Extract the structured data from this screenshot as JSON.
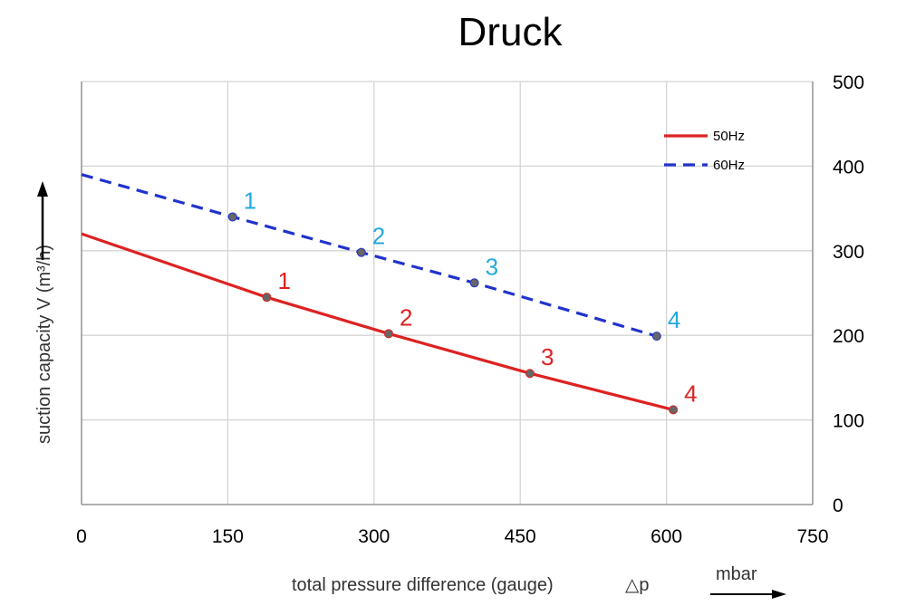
{
  "chart_data": {
    "type": "line",
    "title": "Druck",
    "xlabel": "total pressure difference (gauge)",
    "xlabel_symbol": "△p",
    "xunit": "mbar",
    "ylabel": "suction capacity V (m³/h)",
    "xlim": [
      0,
      750
    ],
    "ylim": [
      0,
      500
    ],
    "x_ticks": [
      0,
      150,
      300,
      450,
      600,
      750
    ],
    "y_ticks": [
      0,
      100,
      200,
      300,
      400,
      500
    ],
    "y_axis_side": "right",
    "grid": true,
    "legend_position": "top-right",
    "series": [
      {
        "name": "50Hz",
        "color": "#dd2222",
        "style": "solid",
        "line": [
          [
            0,
            320
          ],
          [
            190,
            245
          ],
          [
            315,
            202
          ],
          [
            460,
            155
          ],
          [
            607,
            112
          ]
        ],
        "points": [
          {
            "x": 190,
            "y": 245,
            "label": "1"
          },
          {
            "x": 315,
            "y": 202,
            "label": "2"
          },
          {
            "x": 460,
            "y": 155,
            "label": "3"
          },
          {
            "x": 607,
            "y": 112,
            "label": "4"
          }
        ]
      },
      {
        "name": "60Hz",
        "color": "#2233cc",
        "label_color": "#22aadd",
        "style": "dashed",
        "line": [
          [
            0,
            390
          ],
          [
            155,
            340
          ],
          [
            287,
            298
          ],
          [
            403,
            262
          ],
          [
            590,
            199
          ]
        ],
        "points": [
          {
            "x": 155,
            "y": 340,
            "label": "1"
          },
          {
            "x": 287,
            "y": 298,
            "label": "2"
          },
          {
            "x": 403,
            "y": 262,
            "label": "3"
          },
          {
            "x": 590,
            "y": 199,
            "label": "4"
          }
        ]
      }
    ]
  }
}
